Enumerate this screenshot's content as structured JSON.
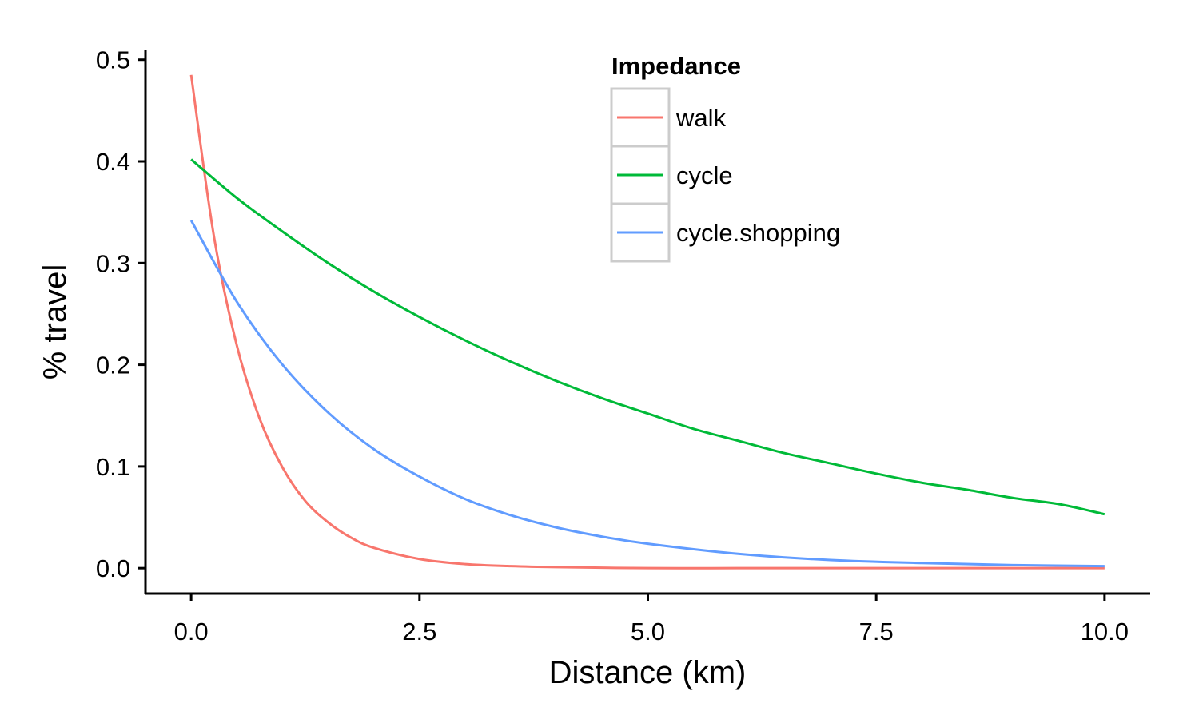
{
  "chart_data": {
    "type": "line",
    "xlabel": "Distance (km)",
    "ylabel": "% travel",
    "xlim": [
      -0.5,
      10.5
    ],
    "ylim": [
      -0.025,
      0.51
    ],
    "xticks": [
      {
        "value": 0,
        "label": "0.0"
      },
      {
        "value": 2.5,
        "label": "2.5"
      },
      {
        "value": 5,
        "label": "5.0"
      },
      {
        "value": 7.5,
        "label": "7.5"
      },
      {
        "value": 10,
        "label": "10.0"
      }
    ],
    "yticks": [
      {
        "value": 0,
        "label": "0.0"
      },
      {
        "value": 0.1,
        "label": "0.1"
      },
      {
        "value": 0.2,
        "label": "0.2"
      },
      {
        "value": 0.3,
        "label": "0.3"
      },
      {
        "value": 0.4,
        "label": "0.4"
      },
      {
        "value": 0.5,
        "label": "0.5"
      }
    ],
    "grid": false,
    "legend": {
      "title": "Impedance",
      "placement": "top-center"
    },
    "series": [
      {
        "name": "walk",
        "color": "#F8766D",
        "x": [
          0,
          0.25,
          0.5,
          0.75,
          1,
          1.25,
          1.5,
          1.75,
          2,
          2.5,
          3,
          3.5,
          4,
          5,
          6,
          7,
          8,
          9,
          10
        ],
        "y": [
          0.485,
          0.326,
          0.219,
          0.147,
          0.099,
          0.066,
          0.045,
          0.03,
          0.02,
          0.009,
          0.004,
          0.002,
          0.001,
          0.0,
          0.0,
          0.0,
          0.0,
          0.0,
          0.0
        ]
      },
      {
        "name": "cycle",
        "color": "#00BA38",
        "x": [
          0,
          0.5,
          1,
          1.5,
          2,
          2.5,
          3,
          3.5,
          4,
          4.5,
          5,
          5.5,
          6,
          6.5,
          7,
          7.5,
          8,
          8.5,
          9,
          9.5,
          10
        ],
        "y": [
          0.402,
          0.364,
          0.331,
          0.3,
          0.272,
          0.247,
          0.224,
          0.203,
          0.184,
          0.167,
          0.152,
          0.137,
          0.125,
          0.113,
          0.103,
          0.093,
          0.084,
          0.077,
          0.069,
          0.063,
          0.053
        ]
      },
      {
        "name": "cycle.shopping",
        "color": "#619CFF",
        "x": [
          0,
          0.5,
          1,
          1.5,
          2,
          2.5,
          3,
          3.5,
          4,
          4.5,
          5,
          6,
          7,
          8,
          9,
          10
        ],
        "y": [
          0.342,
          0.262,
          0.2,
          0.153,
          0.117,
          0.09,
          0.068,
          0.052,
          0.04,
          0.031,
          0.024,
          0.014,
          0.008,
          0.005,
          0.003,
          0.002
        ]
      }
    ]
  }
}
